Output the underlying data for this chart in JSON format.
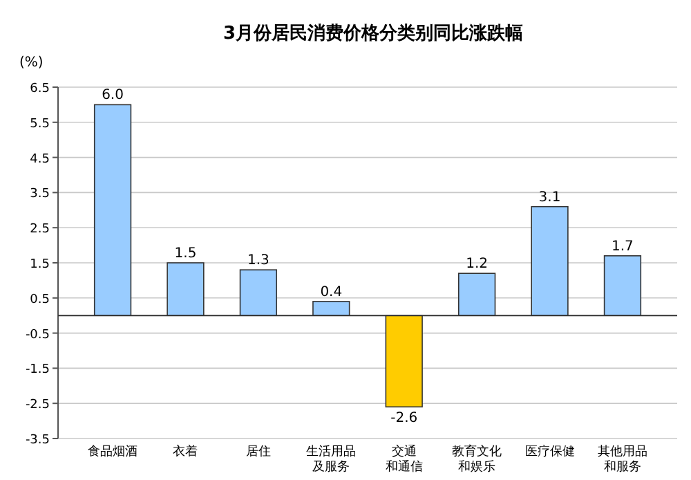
{
  "chart_data": {
    "type": "bar",
    "title": "3月份居民消费价格分类别同比涨跌幅",
    "ylabel": "(%)",
    "categories": [
      "食品烟酒",
      "衣着",
      "居住",
      "生活用品及服务",
      "交通和通信",
      "教育文化和娱乐",
      "医疗保健",
      "其他用品和服务"
    ],
    "values": [
      6.0,
      1.5,
      1.3,
      0.4,
      -2.6,
      1.2,
      3.1,
      1.7
    ],
    "colors": [
      "#99ccff",
      "#99ccff",
      "#99ccff",
      "#99ccff",
      "#ffcc00",
      "#99ccff",
      "#99ccff",
      "#99ccff"
    ],
    "value_labels": [
      "6.0",
      "1.5",
      "1.3",
      "0.4",
      "-2.6",
      "1.2",
      "3.1",
      "1.7"
    ],
    "ylim": [
      -3.5,
      6.5
    ],
    "yticks": [
      6.5,
      5.5,
      4.5,
      3.5,
      2.5,
      1.5,
      0.5,
      -0.5,
      -1.5,
      -2.5,
      -3.5
    ],
    "grid": "y"
  }
}
